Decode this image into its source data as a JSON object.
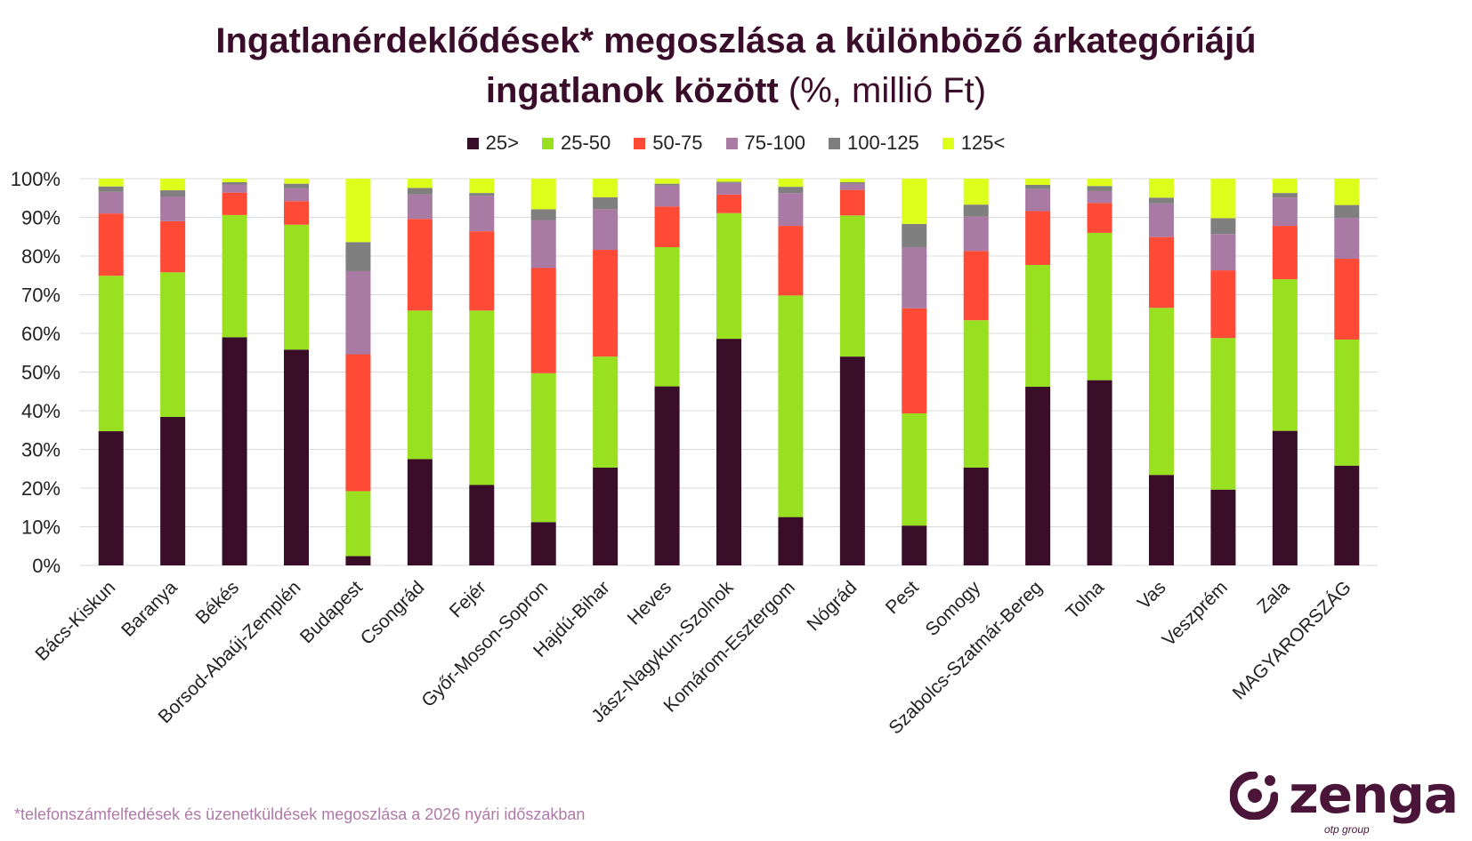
{
  "title": {
    "line1": "Ingatlanérdeklődések* megoszlása a különböző árkategóriájú",
    "line2": "ingatlanok között",
    "unit": " (%, millió Ft)"
  },
  "footnote": "*telefonszámfelfedések és üzenetküldések megoszlása a 2026 nyári időszakban",
  "logo": {
    "word": "zenga",
    "sub": "otp group"
  },
  "chart_data": {
    "type": "bar",
    "stacked": true,
    "ylim": [
      0,
      100
    ],
    "y_ticks": [
      "0%",
      "10%",
      "20%",
      "30%",
      "40%",
      "50%",
      "60%",
      "70%",
      "80%",
      "90%",
      "100%"
    ],
    "grid": true,
    "legend_position": "top",
    "categories": [
      "Bács-Kiskun",
      "Baranya",
      "Békés",
      "Borsod-Abaúj-Zemplén",
      "Budapest",
      "Csongrád",
      "Fejér",
      "Győr-Moson-Sopron",
      "Hajdú-Bihar",
      "Heves",
      "Jász-Nagykun-Szolnok",
      "Komárom-Esztergom",
      "Nógrád",
      "Pest",
      "Somogy",
      "Szabolcs-Szatmár-Bereg",
      "Tolna",
      "Vas",
      "Veszprém",
      "Zala",
      "MAGYARORSZÁG"
    ],
    "series": [
      {
        "name": "25>",
        "color": "#3a0d28",
        "values": [
          34.7,
          38.4,
          59.0,
          55.8,
          2.4,
          27.5,
          20.8,
          11.2,
          25.3,
          46.3,
          58.6,
          12.5,
          54.0,
          10.3,
          25.3,
          46.2,
          47.9,
          23.4,
          19.6,
          34.8,
          25.8
        ]
      },
      {
        "name": "25-50",
        "color": "#99e021",
        "values": [
          40.2,
          37.4,
          31.6,
          32.3,
          16.8,
          38.4,
          45.1,
          38.5,
          28.7,
          36.0,
          32.5,
          57.3,
          36.5,
          29.0,
          38.1,
          31.5,
          38.1,
          43.2,
          39.2,
          39.2,
          32.6
        ]
      },
      {
        "name": "50-75",
        "color": "#ff4a36",
        "values": [
          16.1,
          13.2,
          5.8,
          6.1,
          35.4,
          23.7,
          20.5,
          27.2,
          27.6,
          10.5,
          4.8,
          18.0,
          6.6,
          27.2,
          17.9,
          13.9,
          7.7,
          18.3,
          17.5,
          13.8,
          20.9
        ]
      },
      {
        "name": "75-100",
        "color": "#a97aa4",
        "values": [
          5.6,
          6.4,
          2.1,
          3.3,
          21.5,
          6.3,
          9.2,
          12.4,
          10.5,
          5.4,
          3.0,
          8.5,
          1.6,
          15.7,
          8.9,
          5.7,
          3.1,
          8.7,
          9.4,
          7.3,
          10.6
        ]
      },
      {
        "name": "100-125",
        "color": "#7f7f7f",
        "values": [
          1.4,
          1.6,
          0.6,
          1.2,
          7.5,
          1.7,
          0.7,
          2.8,
          3.1,
          0.5,
          0.3,
          1.6,
          0.4,
          6.1,
          3.1,
          1.1,
          1.3,
          1.5,
          4.1,
          1.2,
          3.3
        ]
      },
      {
        "name": "125<",
        "color": "#ddff1c",
        "values": [
          2.0,
          3.0,
          0.9,
          1.3,
          16.4,
          2.4,
          3.7,
          7.9,
          4.8,
          1.3,
          0.8,
          2.1,
          0.9,
          11.7,
          6.7,
          1.6,
          1.9,
          4.9,
          10.2,
          3.7,
          6.8
        ]
      }
    ]
  }
}
